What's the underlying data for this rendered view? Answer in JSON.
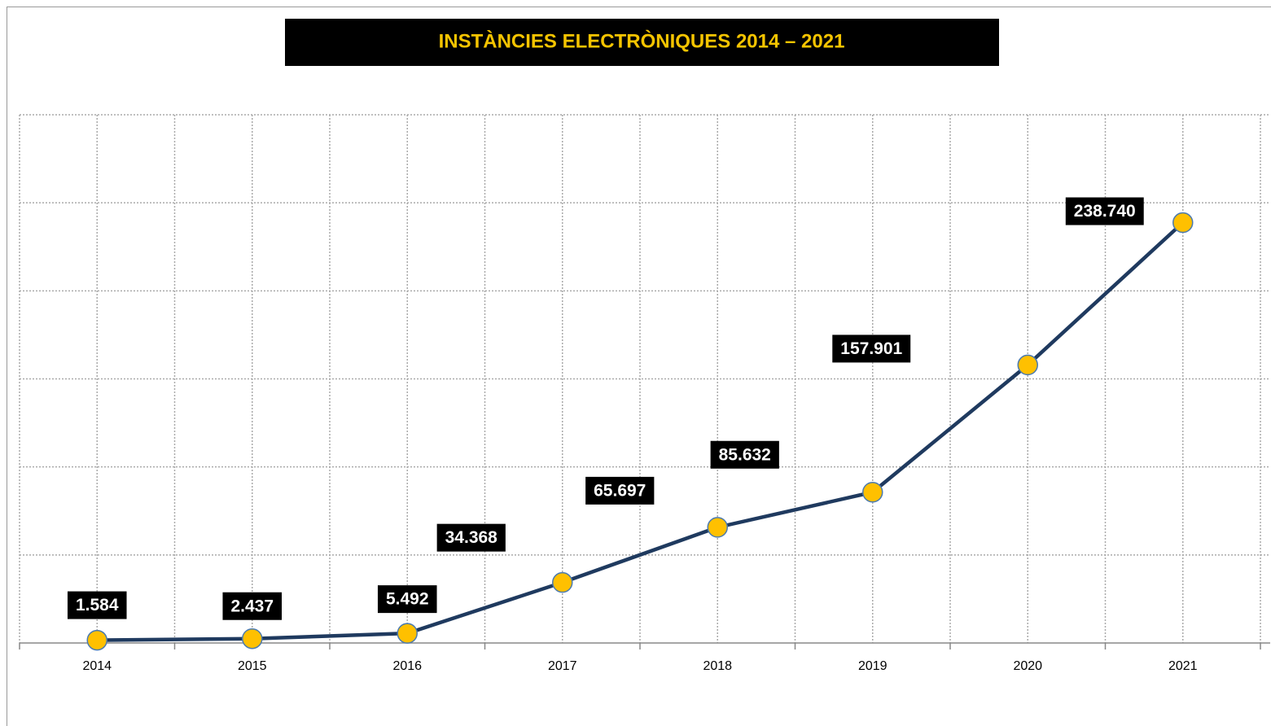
{
  "chart_data": {
    "type": "line",
    "title": "INSTÀNCIES ELECTRÒNIQUES 2014  – 2021",
    "categories": [
      "2014",
      "2015",
      "2016",
      "2017",
      "2018",
      "2019",
      "2020",
      "2021"
    ],
    "series": [
      {
        "name": "Instàncies electròniques",
        "color": "#1f3a5f",
        "values": [
          1584,
          2437,
          5492,
          34368,
          65697,
          85632,
          157901,
          238740
        ],
        "value_labels": [
          "1.584",
          "2.437",
          "5.492",
          "34.368",
          "65.697",
          "85.632",
          "157.901",
          "238.740"
        ]
      }
    ],
    "marker_color": "#ffc000",
    "ylim": [
      0,
      300000
    ],
    "yticks": [
      0,
      50000,
      100000,
      150000,
      200000,
      250000,
      300000
    ],
    "grid": true
  }
}
